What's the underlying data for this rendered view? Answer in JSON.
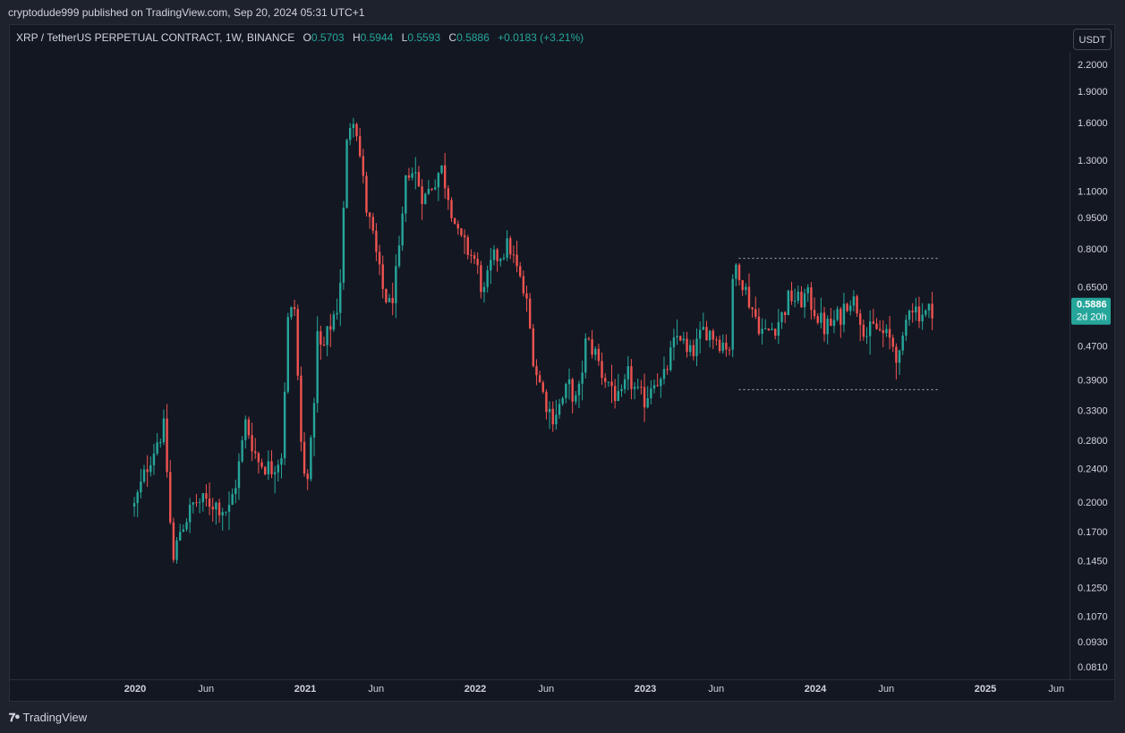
{
  "header": {
    "publisher_line": "cryptodude999 published on TradingView.com, Sep 20, 2024 05:31 UTC+1"
  },
  "legend": {
    "symbol": "XRP / TetherUS PERPETUAL CONTRACT, 1W, BINANCE",
    "o_label": "O",
    "o_value": "0.5703",
    "h_label": "H",
    "h_value": "0.5944",
    "l_label": "L",
    "l_value": "0.5593",
    "c_label": "C",
    "c_value": "0.5886",
    "change": "+0.0183 (+3.21%)"
  },
  "currency_button": "USDT",
  "last_price": {
    "value": "0.5886",
    "countdown": "2d 20h",
    "color": "#26a69a"
  },
  "branding": {
    "logo_text": "TradingView",
    "icon": "tradingview-logo-icon"
  },
  "colors": {
    "up": "#26a69a",
    "down": "#ef5350",
    "background": "#131722",
    "range_line": "#b2b5be"
  },
  "chart_data": {
    "type": "candlestick",
    "scale": "log",
    "ylim": [
      0.075,
      2.25
    ],
    "y_ticks": [
      "2.2000",
      "1.9000",
      "1.6000",
      "1.3000",
      "1.1000",
      "0.9500",
      "0.8000",
      "0.6500",
      "0.4700",
      "0.3900",
      "0.3300",
      "0.2800",
      "0.2400",
      "0.2000",
      "0.1700",
      "0.1450",
      "0.1250",
      "0.1070",
      "0.0930",
      "0.0810"
    ],
    "x_ticks": [
      {
        "label": "2020",
        "t": 2020.0
      },
      {
        "label": "Jun",
        "t": 2020.417
      },
      {
        "label": "2021",
        "t": 2021.0
      },
      {
        "label": "Jun",
        "t": 2021.417
      },
      {
        "label": "2022",
        "t": 2022.0
      },
      {
        "label": "Jun",
        "t": 2022.417
      },
      {
        "label": "2023",
        "t": 2023.0
      },
      {
        "label": "Jun",
        "t": 2023.417
      },
      {
        "label": "2024",
        "t": 2024.0
      },
      {
        "label": "Jun",
        "t": 2024.417
      },
      {
        "label": "2025",
        "t": 2025.0
      },
      {
        "label": "Jun",
        "t": 2025.417
      }
    ],
    "xlim": [
      2019.58,
      2025.58
    ],
    "range_lines": [
      {
        "price": 0.76,
        "t_start": 2023.55,
        "t_end": 2024.72
      },
      {
        "price": 0.37,
        "t_start": 2023.55,
        "t_end": 2024.72
      }
    ],
    "anchors": [
      [
        2019.995,
        0.195
      ],
      [
        2020.08,
        0.25
      ],
      [
        2020.13,
        0.28
      ],
      [
        2020.17,
        0.3
      ],
      [
        2020.2,
        0.2
      ],
      [
        2020.22,
        0.14
      ],
      [
        2020.26,
        0.17
      ],
      [
        2020.35,
        0.2
      ],
      [
        2020.45,
        0.2
      ],
      [
        2020.55,
        0.19
      ],
      [
        2020.6,
        0.23
      ],
      [
        2020.65,
        0.31
      ],
      [
        2020.72,
        0.25
      ],
      [
        2020.8,
        0.24
      ],
      [
        2020.86,
        0.26
      ],
      [
        2020.9,
        0.55
      ],
      [
        2020.94,
        0.58
      ],
      [
        2020.97,
        0.29
      ],
      [
        2021.0,
        0.22
      ],
      [
        2021.04,
        0.28
      ],
      [
        2021.07,
        0.5
      ],
      [
        2021.1,
        0.45
      ],
      [
        2021.13,
        0.5
      ],
      [
        2021.17,
        0.56
      ],
      [
        2021.2,
        0.6
      ],
      [
        2021.25,
        1.55
      ],
      [
        2021.29,
        1.7
      ],
      [
        2021.32,
        1.35
      ],
      [
        2021.36,
        1.0
      ],
      [
        2021.4,
        0.85
      ],
      [
        2021.45,
        0.65
      ],
      [
        2021.5,
        0.58
      ],
      [
        2021.55,
        0.75
      ],
      [
        2021.6,
        1.25
      ],
      [
        2021.65,
        1.2
      ],
      [
        2021.7,
        1.05
      ],
      [
        2021.75,
        1.15
      ],
      [
        2021.8,
        1.25
      ],
      [
        2021.85,
        1.05
      ],
      [
        2021.9,
        0.85
      ],
      [
        2021.95,
        0.8
      ],
      [
        2022.0,
        0.75
      ],
      [
        2022.05,
        0.62
      ],
      [
        2022.1,
        0.75
      ],
      [
        2022.15,
        0.78
      ],
      [
        2022.2,
        0.82
      ],
      [
        2022.25,
        0.7
      ],
      [
        2022.3,
        0.6
      ],
      [
        2022.35,
        0.42
      ],
      [
        2022.4,
        0.36
      ],
      [
        2022.45,
        0.32
      ],
      [
        2022.5,
        0.34
      ],
      [
        2022.55,
        0.38
      ],
      [
        2022.6,
        0.34
      ],
      [
        2022.65,
        0.48
      ],
      [
        2022.7,
        0.46
      ],
      [
        2022.75,
        0.4
      ],
      [
        2022.8,
        0.38
      ],
      [
        2022.85,
        0.34
      ],
      [
        2022.9,
        0.4
      ],
      [
        2022.95,
        0.36
      ],
      [
        2023.0,
        0.35
      ],
      [
        2023.05,
        0.4
      ],
      [
        2023.1,
        0.38
      ],
      [
        2023.15,
        0.45
      ],
      [
        2023.2,
        0.51
      ],
      [
        2023.25,
        0.44
      ],
      [
        2023.3,
        0.47
      ],
      [
        2023.35,
        0.52
      ],
      [
        2023.4,
        0.5
      ],
      [
        2023.45,
        0.48
      ],
      [
        2023.5,
        0.47
      ],
      [
        2023.52,
        0.74
      ],
      [
        2023.55,
        0.72
      ],
      [
        2023.6,
        0.62
      ],
      [
        2023.65,
        0.55
      ],
      [
        2023.7,
        0.5
      ],
      [
        2023.75,
        0.52
      ],
      [
        2023.8,
        0.55
      ],
      [
        2023.85,
        0.62
      ],
      [
        2023.9,
        0.6
      ],
      [
        2023.95,
        0.62
      ],
      [
        2024.0,
        0.57
      ],
      [
        2024.05,
        0.52
      ],
      [
        2024.1,
        0.53
      ],
      [
        2024.15,
        0.56
      ],
      [
        2024.2,
        0.62
      ],
      [
        2024.25,
        0.58
      ],
      [
        2024.3,
        0.5
      ],
      [
        2024.35,
        0.52
      ],
      [
        2024.4,
        0.5
      ],
      [
        2024.45,
        0.48
      ],
      [
        2024.5,
        0.43
      ],
      [
        2024.55,
        0.6
      ],
      [
        2024.6,
        0.57
      ],
      [
        2024.65,
        0.56
      ],
      [
        2024.7,
        0.5886
      ]
    ]
  }
}
